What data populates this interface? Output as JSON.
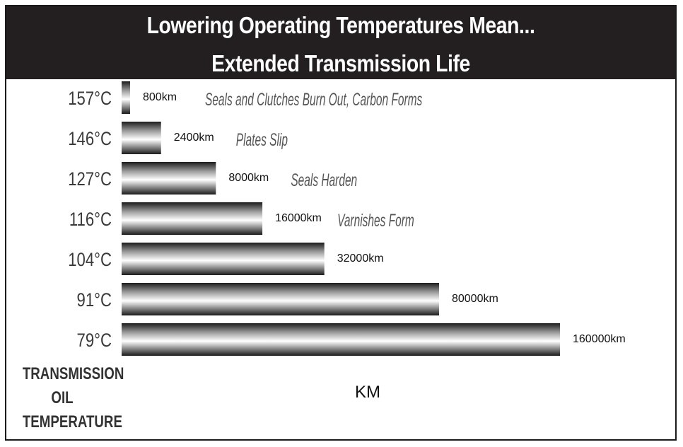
{
  "chart_data": {
    "type": "bar",
    "orientation": "horizontal",
    "title_lines": [
      "Lowering Operating Temperatures Mean...",
      "Extended Transmission Life"
    ],
    "categories": [
      "157°C",
      "146°C",
      "127°C",
      "116°C",
      "104°C",
      "91°C",
      "79°C"
    ],
    "values": [
      800,
      2400,
      8000,
      16000,
      32000,
      80000,
      160000
    ],
    "value_labels": [
      "800km",
      "2400km",
      "8000km",
      "16000km",
      "32000km",
      "80000km",
      "160000km"
    ],
    "annotations": [
      "Seals and Clutches Burn Out, Carbon Forms",
      "Plates Slip",
      "Seals Harden",
      "Varnishes Form",
      "",
      "",
      ""
    ],
    "xlabel": "KM",
    "ylabel_lines": [
      "TRANSMISSION",
      "OIL",
      "TEMPERATURE"
    ],
    "scale": "non-linear (display)",
    "colors": {
      "header_bg": "#231f20",
      "header_text": "#ffffff",
      "bar_dark": "#1c1c1c",
      "bar_light": "#ffffff"
    }
  }
}
